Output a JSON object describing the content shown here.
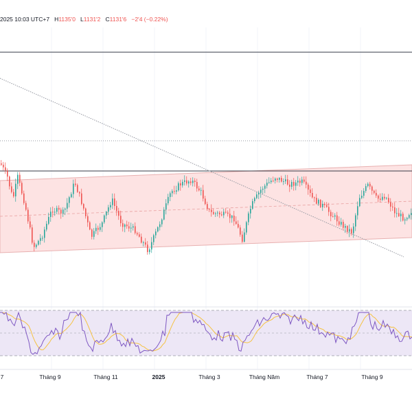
{
  "header": {
    "date_text": "2025 10:03 UTC+7",
    "high_label": "H",
    "high_value": "1135'0",
    "low_label": "L",
    "low_value": "1131'2",
    "close_label": "C",
    "close_value": "1131'6",
    "change": "−2'4 (−0.22%)"
  },
  "x_axis": {
    "labels": [
      {
        "text": "7",
        "bold": false
      },
      {
        "text": "Tháng 9",
        "bold": false
      },
      {
        "text": "Tháng 11",
        "bold": false
      },
      {
        "text": "2025",
        "bold": true
      },
      {
        "text": "Tháng 3",
        "bold": false
      },
      {
        "text": "Tháng Năm",
        "bold": false
      },
      {
        "text": "Tháng 7",
        "bold": false
      },
      {
        "text": "Tháng 9",
        "bold": false
      }
    ]
  },
  "colors": {
    "up_candle": "#26a69a",
    "down_candle": "#ef5350",
    "channel_fill": "#fde3e3",
    "channel_border": "#e8b0b0",
    "rsi_line": "#7e57c2",
    "rsi_ma": "#f5c242",
    "rsi_band": "#ede7f6",
    "grid": "#f0f3fa"
  }
}
